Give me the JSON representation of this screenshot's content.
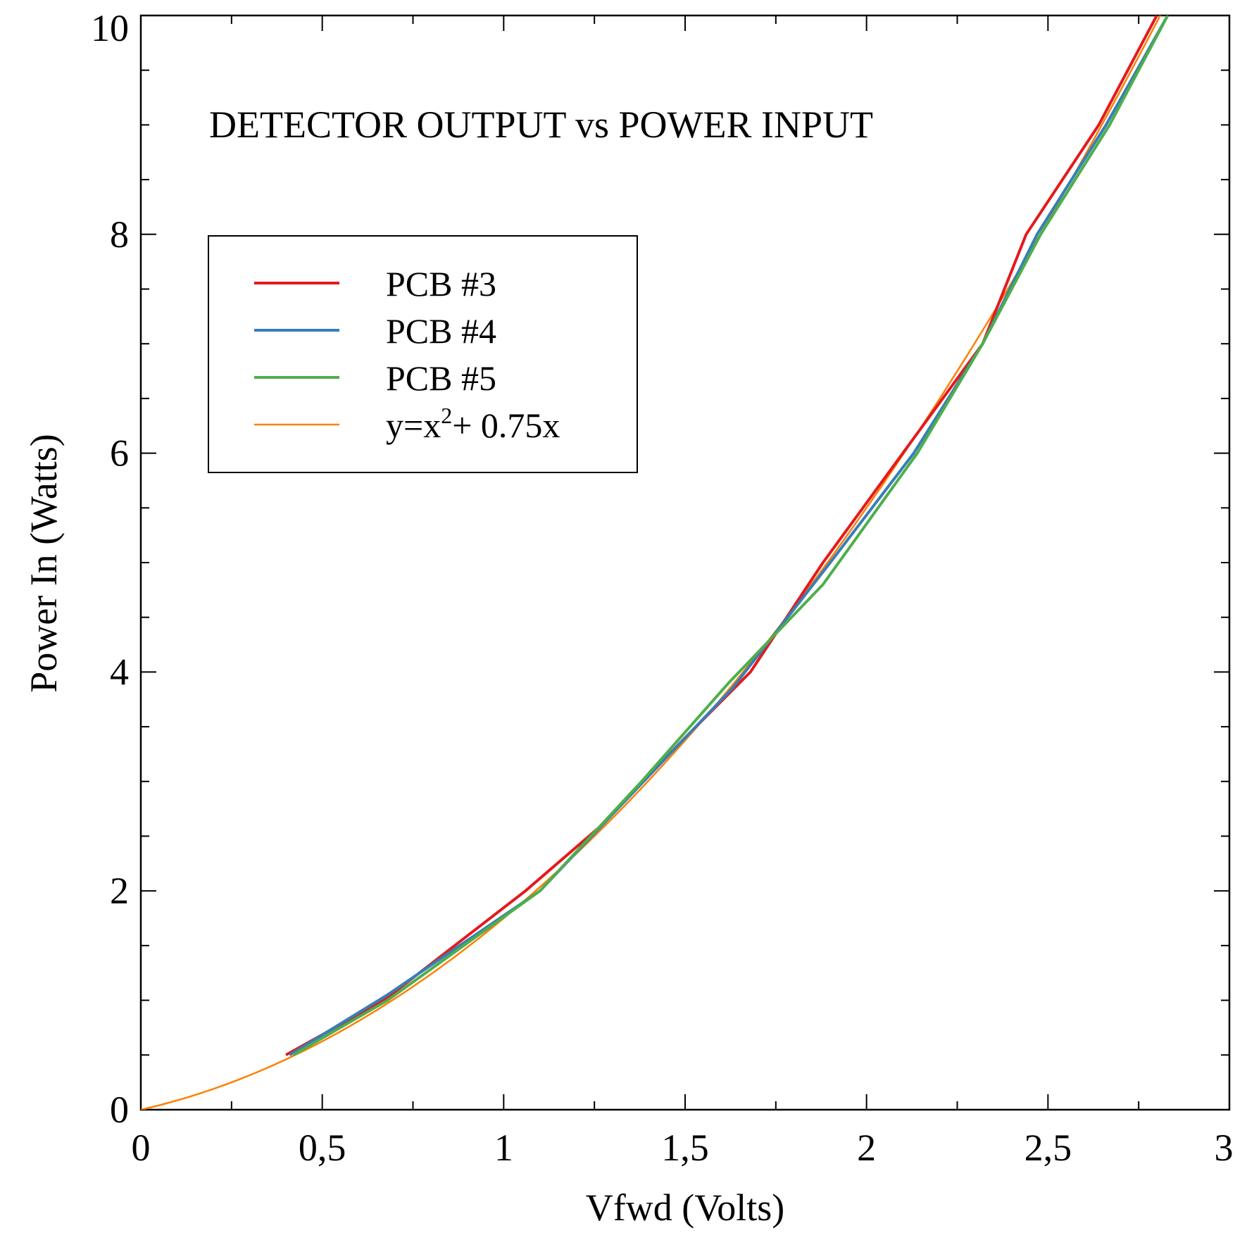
{
  "chart_data": {
    "type": "line",
    "title": "DETECTOR OUTPUT vs POWER INPUT",
    "xlabel": "Vfwd (Volts)",
    "ylabel": "Power In (Watts)",
    "xlim": [
      0,
      3
    ],
    "ylim": [
      0,
      10
    ],
    "x_ticks": [
      "0",
      "0,5",
      "1",
      "1,5",
      "2",
      "2,5",
      "3"
    ],
    "y_ticks": [
      "0",
      "2",
      "4",
      "6",
      "8",
      "10"
    ],
    "grid": false,
    "legend_position": "upper-left",
    "series": [
      {
        "name": "PCB #3",
        "color": "#e41a1c",
        "x": [
          0.4,
          0.67,
          1.06,
          1.27,
          1.5,
          1.68,
          1.88,
          2.1,
          2.32,
          2.44,
          2.64,
          2.8
        ],
        "y": [
          0.5,
          1.0,
          2.0,
          2.6,
          3.4,
          4.0,
          5.0,
          6.0,
          7.0,
          8.0,
          9.0,
          10.0
        ]
      },
      {
        "name": "PCB #4",
        "color": "#377eb8",
        "x": [
          0.41,
          0.68,
          1.1,
          1.4,
          1.63,
          1.9,
          2.13,
          2.32,
          2.47,
          2.66,
          2.83
        ],
        "y": [
          0.5,
          1.05,
          2.0,
          3.05,
          3.85,
          5.0,
          6.0,
          7.0,
          8.0,
          9.0,
          10.0
        ]
      },
      {
        "name": "PCB #5",
        "color": "#4daf4a",
        "x": [
          0.42,
          0.68,
          1.1,
          1.38,
          1.62,
          1.88,
          2.14,
          2.32,
          2.48,
          2.67,
          2.83
        ],
        "y": [
          0.5,
          1.0,
          2.0,
          3.0,
          3.9,
          4.8,
          6.0,
          7.0,
          8.0,
          9.0,
          10.0
        ]
      },
      {
        "name": "y=x",
        "name_sup": "2",
        "name_rest": "+ 0.75x",
        "color": "#ff7f00",
        "function": "quadratic",
        "coefficients": {
          "a": 1,
          "b": 0.75
        },
        "x_range": [
          0,
          2.81
        ]
      }
    ]
  }
}
